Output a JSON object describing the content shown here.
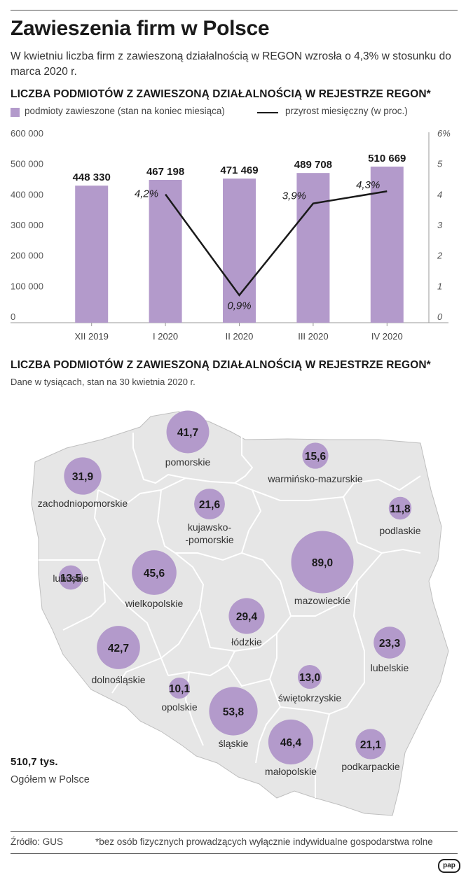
{
  "title": "Zawieszenia firm w Polsce",
  "subtitle": "W kwietniu liczba firm z zawieszoną działalnością w REGON wzrosła o 4,3% w stosunku do marca 2020 r.",
  "section1_title": "LICZBA PODMIOTÓW Z ZAWIESZONĄ DZIAŁALNOŚCIĄ W REJESTRZE REGON*",
  "legend": {
    "bars": "podmioty zawieszone (stan na koniec miesiąca)",
    "line": "przyrost miesięczny (w proc.)"
  },
  "section2_title": "LICZBA PODMIOTÓW Z ZAWIESZONĄ DZIAŁALNOŚCIĄ W REJESTRZE REGON*",
  "section2_note": "Dane w tysiącach, stan na 30 kwietnia 2020 r.",
  "total_value": "510,7 tys.",
  "total_label": "Ogółem w Polsce",
  "source": "Źródło: GUS",
  "footnote": "*bez osób fizycznych prowadzących wyłącznie indywidualne gospodarstwa rolne",
  "logo": "pap",
  "colors": {
    "bar": "#b39acb",
    "line": "#1a1a1a",
    "map_fill": "#e6e6e6",
    "map_stroke": "#ffffff",
    "bubble": "#b39acb"
  },
  "chart_data": [
    {
      "type": "bar",
      "categories": [
        "XII 2019",
        "I 2020",
        "II 2020",
        "III 2020",
        "IV 2020"
      ],
      "series": [
        {
          "name": "podmioty zawieszone (stan na koniec miesiąca)",
          "values": [
            448330,
            467198,
            471469,
            489708,
            510669
          ],
          "value_labels": [
            "448 330",
            "467 198",
            "471 469",
            "489 708",
            "510 669"
          ]
        },
        {
          "name": "przyrost miesięczny (w proc.)",
          "type": "line",
          "axis": "right",
          "x": [
            "I 2020",
            "II 2020",
            "III 2020",
            "IV 2020"
          ],
          "values": [
            4.2,
            0.9,
            3.9,
            4.3
          ],
          "value_labels": [
            "4,2%",
            "0,9%",
            "3,9%",
            "4,3%"
          ]
        }
      ],
      "ylim": [
        0,
        600000
      ],
      "y_ticks": [
        "0",
        "100 000",
        "200 000",
        "300 000",
        "400 000",
        "500 000",
        "600 000"
      ],
      "y2lim": [
        0,
        6
      ],
      "y2_ticks": [
        "0",
        "1",
        "2",
        "3",
        "4",
        "5",
        "6%"
      ],
      "grid": false,
      "legend": "top-left"
    },
    {
      "type": "bubble-map",
      "unit": "tys.",
      "regions": [
        {
          "name": "pomorskie",
          "value": 41.7,
          "label": "41,7"
        },
        {
          "name": "warmińsko-mazurskie",
          "value": 15.6,
          "label": "15,6"
        },
        {
          "name": "zachodniopomorskie",
          "value": 31.9,
          "label": "31,9"
        },
        {
          "name": "kujawsko-pomorskie",
          "value": 21.6,
          "label": "21,6",
          "name_lines": [
            "kujawsko-",
            "-pomorskie"
          ]
        },
        {
          "name": "podlaskie",
          "value": 11.8,
          "label": "11,8"
        },
        {
          "name": "lubuskie",
          "value": 13.5,
          "label": "13,5"
        },
        {
          "name": "wielkopolskie",
          "value": 45.6,
          "label": "45,6"
        },
        {
          "name": "mazowieckie",
          "value": 89.0,
          "label": "89,0"
        },
        {
          "name": "łódzkie",
          "value": 29.4,
          "label": "29,4"
        },
        {
          "name": "dolnośląskie",
          "value": 42.7,
          "label": "42,7"
        },
        {
          "name": "lubelskie",
          "value": 23.3,
          "label": "23,3"
        },
        {
          "name": "świętokrzyskie",
          "value": 13.0,
          "label": "13,0"
        },
        {
          "name": "opolskie",
          "value": 10.1,
          "label": "10,1"
        },
        {
          "name": "śląskie",
          "value": 53.8,
          "label": "53,8"
        },
        {
          "name": "małopolskie",
          "value": 46.4,
          "label": "46,4"
        },
        {
          "name": "podkarpackie",
          "value": 21.1,
          "label": "21,1"
        }
      ]
    }
  ]
}
